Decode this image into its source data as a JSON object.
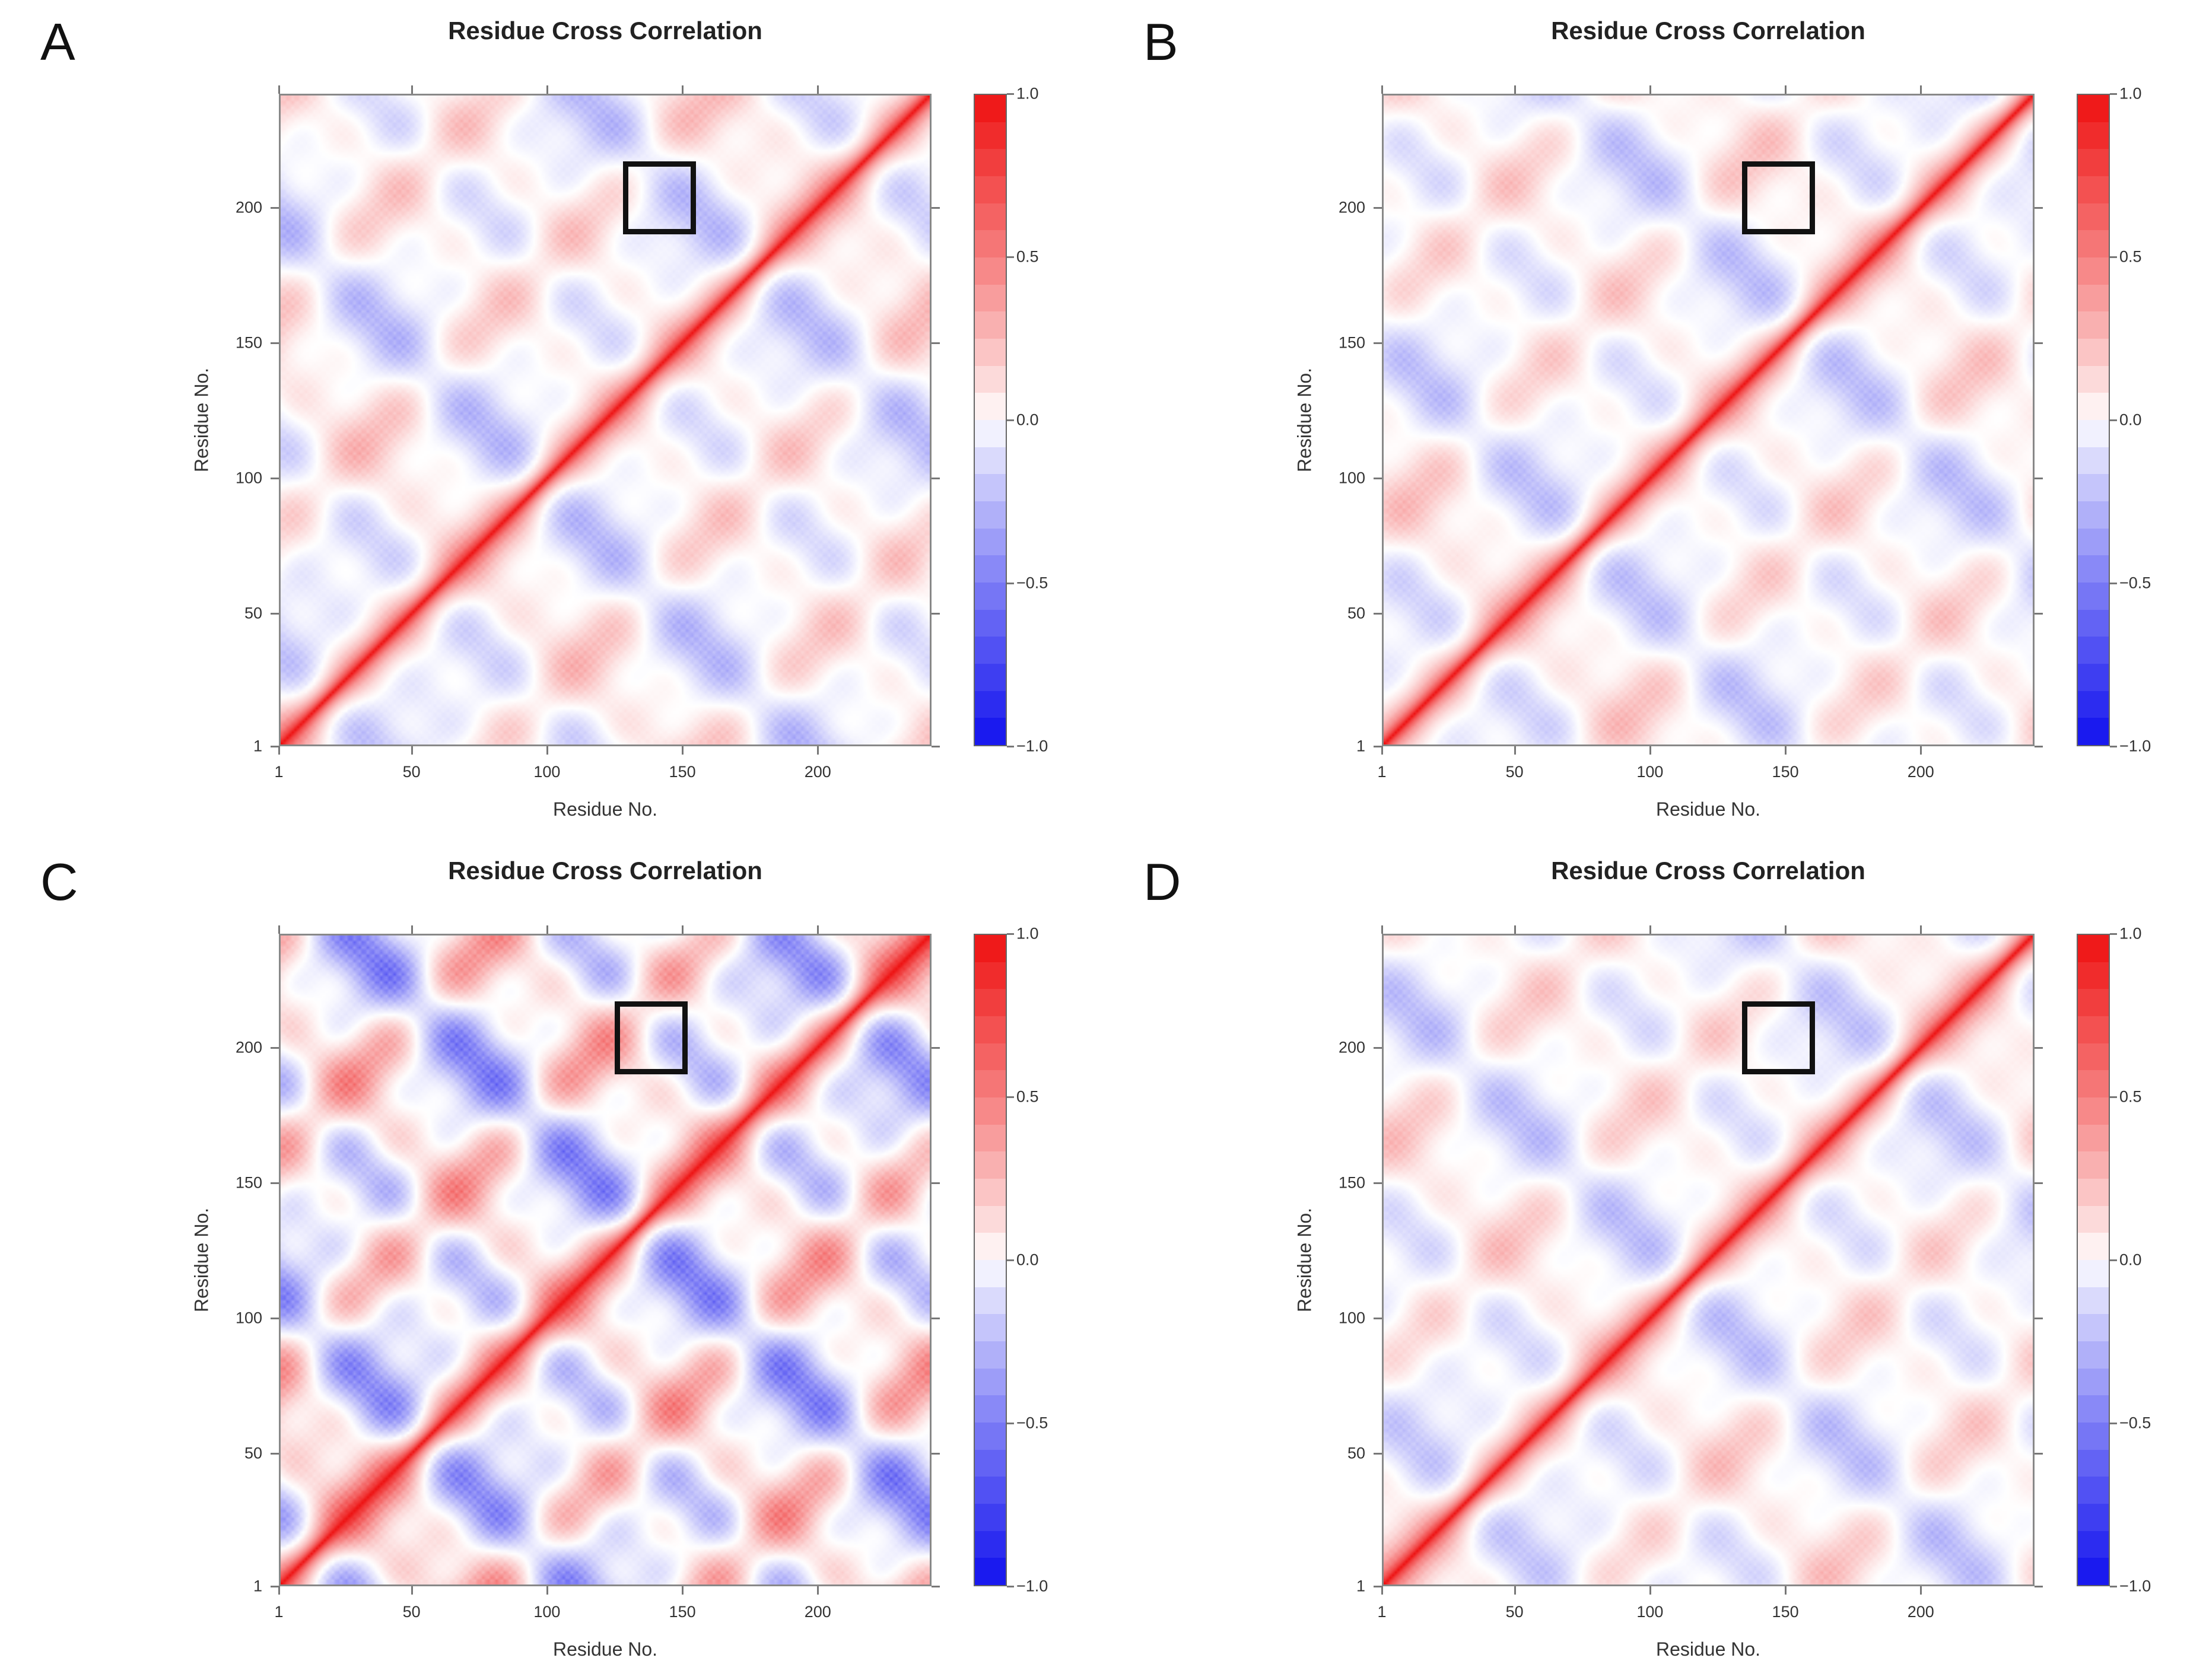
{
  "chart_data": [
    {
      "panel": "A",
      "type": "heatmap",
      "title": "Residue Cross Correlation",
      "xlabel": "Residue No.",
      "ylabel": "Residue No.",
      "xlim": [
        1,
        242
      ],
      "ylim": [
        1,
        242
      ],
      "x_ticks": [
        "1",
        "50",
        "100",
        "150",
        "200"
      ],
      "y_ticks": [
        "1",
        "50",
        "100",
        "150",
        "200"
      ],
      "colorbar_range": [
        -1.0,
        1.0
      ],
      "colorbar_ticks": [
        "1.0",
        "0.5",
        "0.0",
        "−0.5",
        "−1.0"
      ],
      "highlight_box": {
        "x": [
          128,
          155
        ],
        "y": [
          190,
          217
        ]
      },
      "intensity": 0.55
    },
    {
      "panel": "B",
      "type": "heatmap",
      "title": "Residue Cross Correlation",
      "xlabel": "Residue No.",
      "ylabel": "Residue No.",
      "xlim": [
        1,
        242
      ],
      "ylim": [
        1,
        242
      ],
      "x_ticks": [
        "1",
        "50",
        "100",
        "150",
        "200"
      ],
      "y_ticks": [
        "1",
        "50",
        "100",
        "150",
        "200"
      ],
      "colorbar_range": [
        -1.0,
        1.0
      ],
      "colorbar_ticks": [
        "1.0",
        "0.5",
        "0.0",
        "−0.5",
        "−1.0"
      ],
      "highlight_box": {
        "x": [
          134,
          161
        ],
        "y": [
          190,
          217
        ]
      },
      "intensity": 0.5
    },
    {
      "panel": "C",
      "type": "heatmap",
      "title": "Residue Cross Correlation",
      "xlabel": "Residue No.",
      "ylabel": "Residue No.",
      "xlim": [
        1,
        242
      ],
      "ylim": [
        1,
        242
      ],
      "x_ticks": [
        "1",
        "50",
        "100",
        "150",
        "200"
      ],
      "y_ticks": [
        "1",
        "50",
        "100",
        "150",
        "200"
      ],
      "colorbar_range": [
        -1.0,
        1.0
      ],
      "colorbar_ticks": [
        "1.0",
        "0.5",
        "0.0",
        "−0.5",
        "−1.0"
      ],
      "highlight_box": {
        "x": [
          125,
          152
        ],
        "y": [
          190,
          217
        ]
      },
      "intensity": 0.95
    },
    {
      "panel": "D",
      "type": "heatmap",
      "title": "Residue Cross Correlation",
      "xlabel": "Residue No.",
      "ylabel": "Residue No.",
      "xlim": [
        1,
        242
      ],
      "ylim": [
        1,
        242
      ],
      "x_ticks": [
        "1",
        "50",
        "100",
        "150",
        "200"
      ],
      "y_ticks": [
        "1",
        "50",
        "100",
        "150",
        "200"
      ],
      "colorbar_range": [
        -1.0,
        1.0
      ],
      "colorbar_ticks": [
        "1.0",
        "0.5",
        "0.0",
        "−0.5",
        "−1.0"
      ],
      "highlight_box": {
        "x": [
          134,
          161
        ],
        "y": [
          190,
          217
        ]
      },
      "intensity": 0.5
    }
  ],
  "colors": {
    "positive": "#ee1111",
    "neutral": "#ffffff",
    "negative": "#1111ee",
    "highlight_box": "#111111"
  }
}
